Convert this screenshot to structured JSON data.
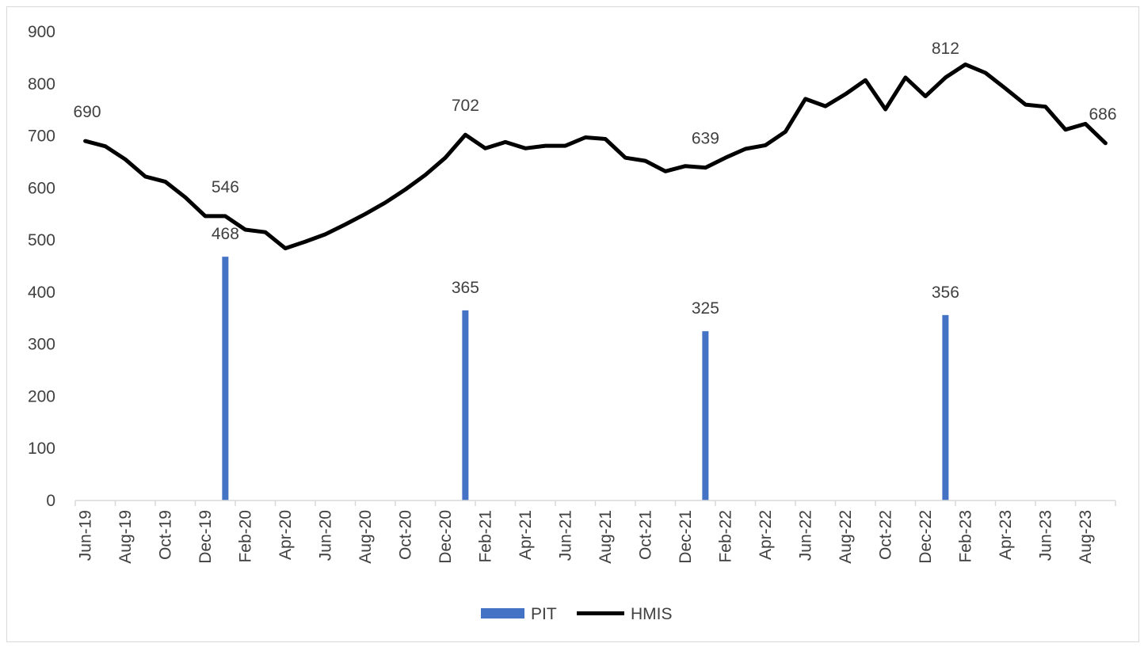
{
  "chart_data": {
    "type": "bar+line",
    "y_ticks": [
      0,
      100,
      200,
      300,
      400,
      500,
      600,
      700,
      800,
      900
    ],
    "ylim": [
      0,
      900
    ],
    "x_tick_labels": [
      "Jun-19",
      "Aug-19",
      "Oct-19",
      "Dec-19",
      "Feb-20",
      "Apr-20",
      "Jun-20",
      "Aug-20",
      "Oct-20",
      "Dec-20",
      "Feb-21",
      "Apr-21",
      "Jun-21",
      "Aug-21",
      "Oct-21",
      "Dec-21",
      "Feb-22",
      "Apr-22",
      "Jun-22",
      "Aug-22",
      "Oct-22",
      "Dec-22",
      "Feb-23",
      "Apr-23",
      "Jun-23",
      "Aug-23"
    ],
    "series": [
      {
        "name": "PIT",
        "type": "bar",
        "color": "#4472c4",
        "points": [
          {
            "x": "Jan-20",
            "y": 468,
            "label": "468"
          },
          {
            "x": "Jan-21",
            "y": 365,
            "label": "365"
          },
          {
            "x": "Jan-22",
            "y": 325,
            "label": "325"
          },
          {
            "x": "Jan-23",
            "y": 356,
            "label": "356"
          }
        ]
      },
      {
        "name": "HMIS",
        "type": "line",
        "color": "#000000",
        "x": [
          "Jun-19",
          "Jul-19",
          "Aug-19",
          "Sep-19",
          "Oct-19",
          "Nov-19",
          "Dec-19",
          "Jan-20",
          "Feb-20",
          "Mar-20",
          "Apr-20",
          "May-20",
          "Jun-20",
          "Jul-20",
          "Aug-20",
          "Sep-20",
          "Oct-20",
          "Nov-20",
          "Dec-20",
          "Jan-21",
          "Feb-21",
          "Mar-21",
          "Apr-21",
          "May-21",
          "Jun-21",
          "Jul-21",
          "Aug-21",
          "Sep-21",
          "Oct-21",
          "Nov-21",
          "Dec-21",
          "Jan-22",
          "Feb-22",
          "Mar-22",
          "Apr-22",
          "May-22",
          "Jun-22",
          "Jul-22",
          "Aug-22",
          "Sep-22",
          "Oct-22",
          "Nov-22",
          "Dec-22",
          "Jan-23",
          "Feb-23",
          "Mar-23",
          "Apr-23",
          "May-23",
          "Jun-23",
          "Jul-23",
          "Aug-23",
          "Sep-23"
        ],
        "values": [
          690,
          680,
          655,
          622,
          612,
          582,
          546,
          546,
          520,
          515,
          484,
          497,
          511,
          530,
          550,
          572,
          597,
          625,
          658,
          702,
          676,
          688,
          676,
          681,
          681,
          697,
          694,
          658,
          652,
          632,
          642,
          639,
          658,
          675,
          682,
          708,
          771,
          757,
          780,
          807,
          751,
          812,
          776,
          812,
          837,
          821,
          791,
          760,
          756,
          712,
          723,
          686
        ],
        "labels": [
          {
            "x": "Jun-19",
            "text": "690"
          },
          {
            "x": "Jan-20",
            "text": "546"
          },
          {
            "x": "Jan-21",
            "text": "702"
          },
          {
            "x": "Jan-22",
            "text": "639"
          },
          {
            "x": "Jan-23",
            "text": "812"
          },
          {
            "x": "Sep-23",
            "text": "686"
          }
        ]
      }
    ],
    "legend": {
      "position": "bottom",
      "items": [
        {
          "name": "PIT",
          "color": "#4472c4",
          "marker": "bar"
        },
        {
          "name": "HMIS",
          "color": "#000000",
          "marker": "line"
        }
      ]
    },
    "grid": false
  }
}
